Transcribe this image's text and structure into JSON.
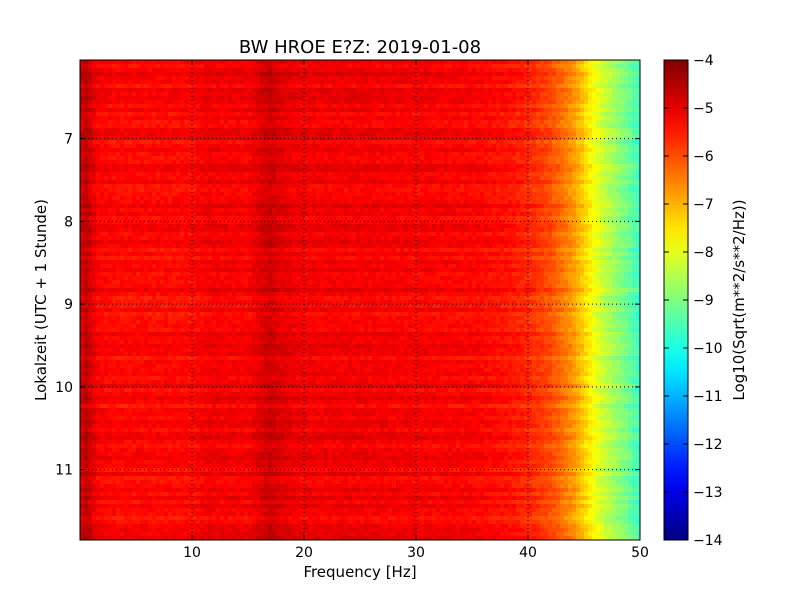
{
  "chart_data": {
    "type": "heatmap",
    "title": "BW HROE E?Z: 2019-01-08",
    "xlabel": "Frequency [Hz]",
    "ylabel": "Lokalzeit (UTC + 1 Stunde)",
    "xlim": [
      0,
      50
    ],
    "ylim": [
      11.85,
      6.05
    ],
    "y_inverted": true,
    "x_ticks": [
      10,
      20,
      30,
      40,
      50
    ],
    "x_tick_labels": [
      "10",
      "20",
      "30",
      "40",
      "50"
    ],
    "y_ticks": [
      7,
      8,
      9,
      10,
      11
    ],
    "y_tick_labels": [
      "7",
      "8",
      "9",
      "10",
      "11"
    ],
    "grid": "dotted",
    "colormap": "jet",
    "colorbar": {
      "label": "Log10(Sqrt(m**2/s**2/Hz))",
      "range": [
        -14,
        -4
      ],
      "ticks": [
        -4,
        -5,
        -6,
        -7,
        -8,
        -9,
        -10,
        -11,
        -12,
        -13,
        -14
      ],
      "tick_labels": [
        "−4",
        "−5",
        "−6",
        "−7",
        "−8",
        "−9",
        "−10",
        "−11",
        "−12",
        "−13",
        "−14"
      ]
    },
    "frequency_profile": {
      "frequency_hz": [
        0,
        0.6,
        1.5,
        3,
        5,
        10,
        11.3,
        15,
        16.3,
        17,
        17.7,
        20,
        25,
        30,
        35,
        38,
        40,
        42,
        44,
        45,
        46,
        47,
        48,
        49,
        50
      ],
      "value": [
        -4.9,
        -4.6,
        -5.2,
        -5.3,
        -5.3,
        -5.3,
        -5.15,
        -5.2,
        -4.9,
        -4.75,
        -4.95,
        -5.15,
        -5.15,
        -5.2,
        -5.25,
        -5.4,
        -5.6,
        -6.0,
        -6.7,
        -7.3,
        -7.9,
        -8.4,
        -8.8,
        -9.2,
        -9.7
      ]
    },
    "notes_visible": "Broad red band across all times; vertical dark-red stripe near 17 Hz; yellow-cyan falloff above ~44 Hz"
  }
}
